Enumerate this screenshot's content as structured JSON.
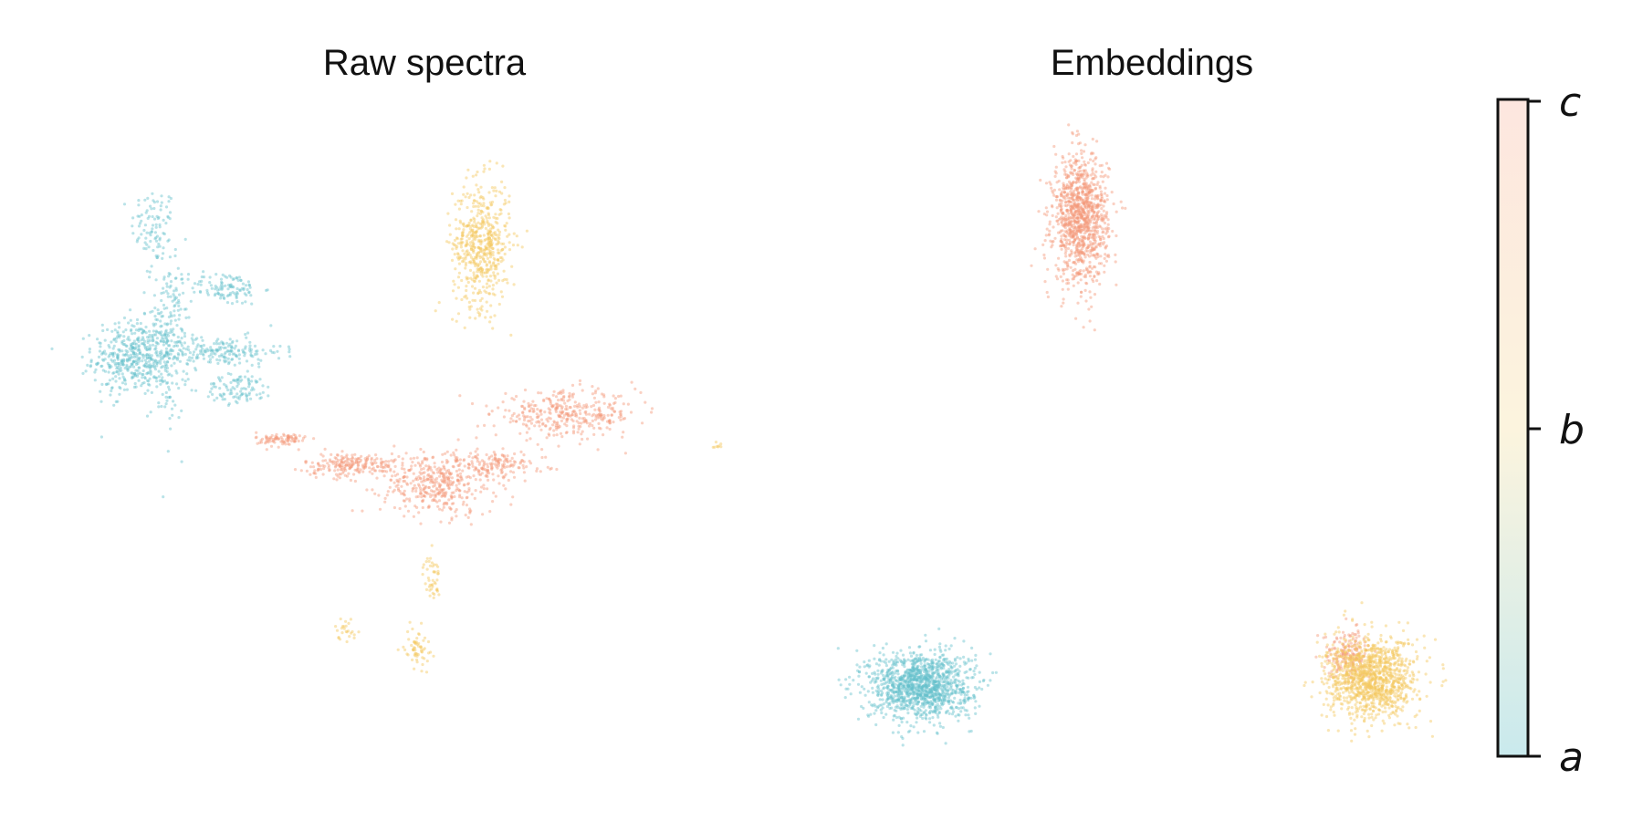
{
  "figure": {
    "colorbar": {
      "ticks": [
        "a",
        "b",
        "c"
      ],
      "colors": [
        "#66c2cc",
        "#f7e0a0",
        "#f9b8a3"
      ]
    }
  },
  "chart_data": [
    {
      "type": "scatter",
      "title": "Raw spectra",
      "xlabel": "",
      "ylabel": "",
      "grid": false,
      "axes_visible": false,
      "xlim": [
        0,
        100
      ],
      "ylim": [
        0,
        100
      ],
      "series": [
        {
          "color": "#66c2cc",
          "clusters": [
            {
              "x": 12,
              "y": 83,
              "sx": 1.6,
              "sy": 3.0,
              "n": 90
            },
            {
              "x": 9,
              "y": 62,
              "sx": 2.8,
              "sy": 3.0,
              "n": 420
            },
            {
              "x": 14,
              "y": 65,
              "sx": 1.4,
              "sy": 6.5,
              "n": 220
            },
            {
              "x": 21,
              "y": 63,
              "sx": 4.5,
              "sy": 1.2,
              "n": 200
            },
            {
              "x": 22,
              "y": 73,
              "sx": 2.6,
              "sy": 1.3,
              "n": 110
            },
            {
              "x": 24,
              "y": 57,
              "sx": 2.5,
              "sy": 1.2,
              "n": 100
            }
          ]
        },
        {
          "color": "#f5c85e",
          "clusters": [
            {
              "x": 58,
              "y": 80,
              "sx": 2.0,
              "sy": 5.0,
              "n": 550
            },
            {
              "x": 49,
              "y": 16,
              "sx": 0.9,
              "sy": 1.6,
              "n": 60
            },
            {
              "x": 51,
              "y": 27,
              "sx": 0.6,
              "sy": 1.8,
              "n": 45
            },
            {
              "x": 39,
              "y": 19,
              "sx": 0.8,
              "sy": 0.9,
              "n": 25
            },
            {
              "x": 91,
              "y": 48,
              "sx": 0.4,
              "sy": 0.4,
              "n": 8
            }
          ]
        },
        {
          "color": "#f4997a",
          "clusters": [
            {
              "x": 30,
              "y": 49,
              "sx": 1.8,
              "sy": 0.6,
              "n": 90
            },
            {
              "x": 40,
              "y": 45,
              "sx": 3.5,
              "sy": 0.9,
              "n": 220
            },
            {
              "x": 52,
              "y": 42,
              "sx": 4.0,
              "sy": 2.5,
              "n": 420
            },
            {
              "x": 60,
              "y": 45,
              "sx": 3.5,
              "sy": 1.0,
              "n": 140
            },
            {
              "x": 70,
              "y": 53,
              "sx": 5.0,
              "sy": 1.8,
              "n": 360
            }
          ]
        }
      ]
    },
    {
      "type": "scatter",
      "title": "Embeddings",
      "xlabel": "",
      "ylabel": "",
      "grid": false,
      "axes_visible": false,
      "xlim": [
        0,
        100
      ],
      "ylim": [
        0,
        100
      ],
      "series": [
        {
          "color": "#f4997a",
          "clusters": [
            {
              "x": 36,
              "y": 84,
              "sx": 2.3,
              "sy": 5.0,
              "n": 1100
            },
            {
              "x": 81,
              "y": 15,
              "sx": 2.0,
              "sy": 1.8,
              "n": 180
            }
          ]
        },
        {
          "color": "#66c2cc",
          "clusters": [
            {
              "x": 9,
              "y": 10,
              "sx": 4.3,
              "sy": 2.7,
              "n": 1300
            }
          ]
        },
        {
          "color": "#f5c85e",
          "clusters": [
            {
              "x": 85,
              "y": 11,
              "sx": 3.8,
              "sy": 3.2,
              "n": 1200
            }
          ]
        }
      ]
    }
  ]
}
